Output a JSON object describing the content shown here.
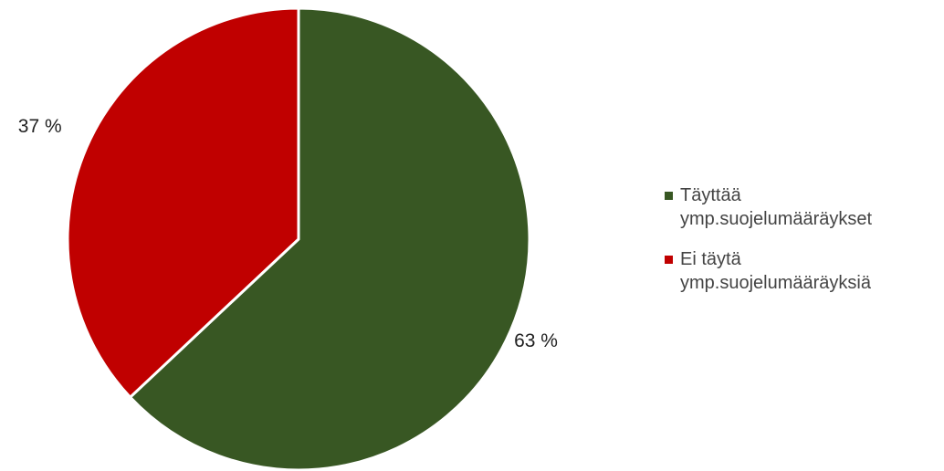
{
  "chart_data": {
    "type": "pie",
    "title": "",
    "series": [
      {
        "name": "Täyttää ymp.suojelumääräykset",
        "value": 63,
        "label": "63 %",
        "color": "#385723"
      },
      {
        "name": "Ei täytä ymp.suojelumääräyksiä",
        "value": 37,
        "label": "37 %",
        "color": "#C00000"
      }
    ],
    "legend_placement": "right",
    "legend": [
      {
        "line1": "Täyttää",
        "line2": "ymp.suojelumääräykset",
        "color": "#385723"
      },
      {
        "line1": "Ei täytä",
        "line2": "ymp.suojelumääräyksiä",
        "color": "#C00000"
      }
    ]
  }
}
